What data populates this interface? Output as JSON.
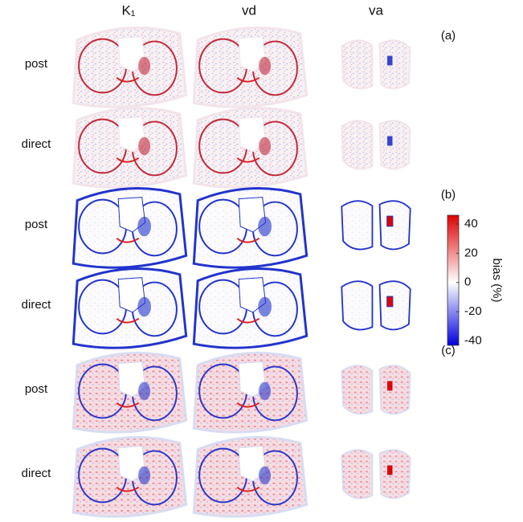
{
  "columns": [
    "K₁",
    "vd",
    "va"
  ],
  "panels": [
    {
      "label": "(a)",
      "rows": [
        "post",
        "direct"
      ]
    },
    {
      "label": "(b)",
      "rows": [
        "post",
        "direct"
      ]
    },
    {
      "label": "(c)",
      "rows": [
        "post",
        "direct"
      ]
    }
  ],
  "colorbar": {
    "label": "bias (%)",
    "lim": [
      -43,
      46
    ],
    "ticks": [
      40,
      20,
      0,
      -20,
      -40
    ]
  }
}
